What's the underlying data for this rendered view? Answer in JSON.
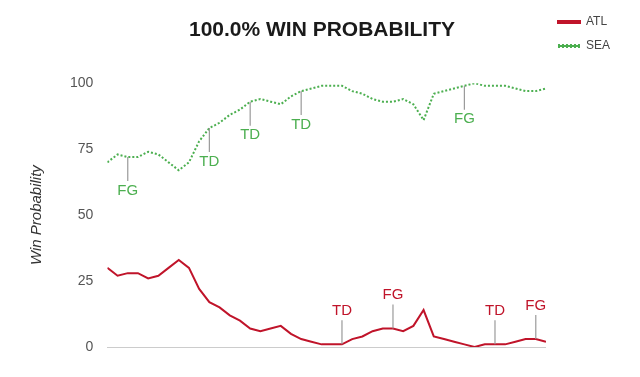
{
  "chart_data": {
    "type": "line",
    "title": "100.0% WIN PROBABILITY",
    "y_label": "Win Probability",
    "x": [
      0,
      1,
      2,
      3,
      4,
      5,
      6,
      7,
      8,
      9,
      10,
      11,
      12,
      13,
      14,
      15,
      16,
      17,
      18,
      19,
      20,
      21,
      22,
      23,
      24,
      25,
      26,
      27,
      28,
      29,
      30,
      31,
      32,
      33,
      34,
      35,
      36,
      37,
      38,
      39,
      40,
      41,
      42,
      43
    ],
    "series": [
      {
        "name": "ATL",
        "color": "#c0142a",
        "line_style": "solid",
        "values": [
          30,
          27,
          28,
          28,
          26,
          27,
          30,
          33,
          30,
          22,
          17,
          15,
          12,
          10,
          7,
          6,
          7,
          8,
          5,
          3,
          2,
          1,
          1,
          1,
          3,
          4,
          6,
          7,
          7,
          6,
          8,
          14,
          4,
          3,
          2,
          1,
          0,
          1,
          1,
          1,
          2,
          3,
          3,
          2
        ]
      },
      {
        "name": "SEA",
        "color": "#4caf50",
        "line_style": "dotted",
        "values": [
          70,
          73,
          72,
          72,
          74,
          73,
          70,
          67,
          70,
          78,
          83,
          85,
          88,
          90,
          93,
          94,
          93,
          92,
          95,
          97,
          98,
          99,
          99,
          99,
          97,
          96,
          94,
          93,
          93,
          94,
          92,
          86,
          96,
          97,
          98,
          99,
          100,
          99,
          99,
          99,
          98,
          97,
          97,
          98
        ]
      }
    ],
    "annotations": [
      {
        "text": "FG",
        "series": "SEA",
        "x": 2,
        "y": 72
      },
      {
        "text": "TD",
        "series": "SEA",
        "x": 10,
        "y": 83
      },
      {
        "text": "TD",
        "series": "SEA",
        "x": 14,
        "y": 93
      },
      {
        "text": "TD",
        "series": "SEA",
        "x": 19,
        "y": 97
      },
      {
        "text": "FG",
        "series": "SEA",
        "x": 35,
        "y": 99
      },
      {
        "text": "TD",
        "series": "ATL",
        "x": 23,
        "y": 1
      },
      {
        "text": "FG",
        "series": "ATL",
        "x": 28,
        "y": 7
      },
      {
        "text": "TD",
        "series": "ATL",
        "x": 38,
        "y": 1
      },
      {
        "text": "FG",
        "series": "ATL",
        "x": 42,
        "y": 3
      }
    ],
    "xlim": [
      0,
      43
    ],
    "ylim": [
      0,
      100
    ],
    "yticks": [
      0,
      25,
      50,
      75,
      100
    ],
    "grid": false,
    "legend": "right",
    "tick_labels": "y"
  }
}
